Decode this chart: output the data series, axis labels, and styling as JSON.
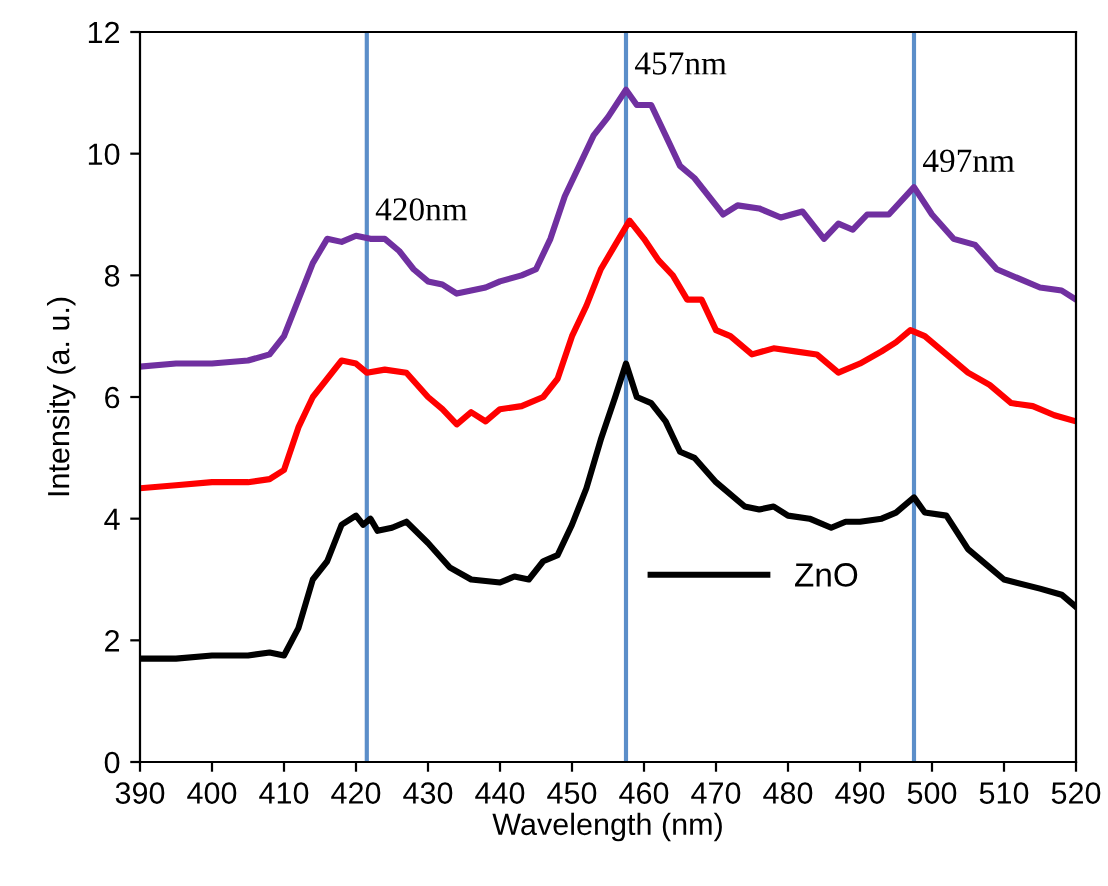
{
  "chart_data": {
    "type": "line",
    "xlabel": "Wavelength (nm)",
    "ylabel": "Intensity (a. u.)",
    "xlim": [
      390,
      520
    ],
    "xticks": [
      390,
      400,
      410,
      420,
      430,
      440,
      450,
      460,
      470,
      480,
      490,
      500,
      510,
      520
    ],
    "ylim": [
      0,
      12
    ],
    "yticks": [
      0,
      2,
      4,
      6,
      8,
      10,
      12
    ],
    "grid": false,
    "legend": "bottom right",
    "series": [
      {
        "name": "ZnO",
        "color": "#000000",
        "x": [
          390,
          395,
          400,
          405,
          408,
          410,
          412,
          414,
          416,
          418,
          420,
          421,
          422,
          423,
          425,
          427,
          430,
          433,
          436,
          440,
          442,
          444,
          446,
          448,
          450,
          452,
          454,
          456,
          457.5,
          459,
          461,
          463,
          465,
          467,
          470,
          474,
          476,
          478,
          480,
          483,
          486,
          488,
          490,
          493,
          495,
          497.5,
          499,
          502,
          505,
          508,
          510,
          515,
          518,
          520
        ],
        "values": [
          1.7,
          1.7,
          1.75,
          1.75,
          1.8,
          1.75,
          2.2,
          3.0,
          3.3,
          3.9,
          4.05,
          3.9,
          4.0,
          3.8,
          3.85,
          3.95,
          3.6,
          3.2,
          3.0,
          2.95,
          3.05,
          3.0,
          3.3,
          3.4,
          3.9,
          4.5,
          5.3,
          6.0,
          6.55,
          6.0,
          5.9,
          5.6,
          5.1,
          5.0,
          4.6,
          4.2,
          4.15,
          4.2,
          4.05,
          4.0,
          3.85,
          3.95,
          3.95,
          4.0,
          4.1,
          4.35,
          4.1,
          4.05,
          3.5,
          3.2,
          3.0,
          2.85,
          2.75,
          2.55
        ]
      },
      {
        "color": "#ff0000",
        "x": [
          390,
          395,
          400,
          405,
          408,
          410,
          412,
          414,
          416,
          418,
          420,
          421.5,
          424,
          427,
          430,
          432,
          434,
          436,
          438,
          440,
          443,
          446,
          448,
          450,
          452,
          454,
          456,
          458,
          460,
          462,
          464,
          466,
          468,
          470,
          472,
          475,
          478,
          481,
          484,
          487,
          490,
          493,
          495,
          497,
          499,
          502,
          505,
          508,
          511,
          514,
          517,
          520
        ],
        "values": [
          4.5,
          4.55,
          4.6,
          4.6,
          4.65,
          4.8,
          5.5,
          6.0,
          6.3,
          6.6,
          6.55,
          6.4,
          6.45,
          6.4,
          6.0,
          5.8,
          5.55,
          5.75,
          5.6,
          5.8,
          5.85,
          6.0,
          6.3,
          7.0,
          7.5,
          8.1,
          8.5,
          8.9,
          8.6,
          8.25,
          8.0,
          7.6,
          7.6,
          7.1,
          7.0,
          6.7,
          6.8,
          6.75,
          6.7,
          6.4,
          6.55,
          6.75,
          6.9,
          7.1,
          7.0,
          6.7,
          6.4,
          6.2,
          5.9,
          5.85,
          5.7,
          5.6
        ]
      },
      {
        "color": "#7030a0",
        "x": [
          390,
          395,
          400,
          405,
          408,
          410,
          412,
          414,
          416,
          418,
          420,
          422,
          424,
          426,
          428,
          430,
          432,
          434,
          436,
          438,
          440,
          443,
          445,
          447,
          449,
          451,
          453,
          455,
          457.5,
          459,
          461,
          463,
          465,
          467,
          469,
          471,
          473,
          476,
          479,
          482,
          485,
          487,
          489,
          491,
          494,
          497.5,
          500,
          503,
          506,
          509,
          512,
          515,
          518,
          520
        ],
        "values": [
          6.5,
          6.55,
          6.55,
          6.6,
          6.7,
          7.0,
          7.6,
          8.2,
          8.6,
          8.55,
          8.65,
          8.6,
          8.6,
          8.4,
          8.1,
          7.9,
          7.85,
          7.7,
          7.75,
          7.8,
          7.9,
          8.0,
          8.1,
          8.6,
          9.3,
          9.8,
          10.3,
          10.6,
          11.05,
          10.8,
          10.8,
          10.3,
          9.8,
          9.6,
          9.3,
          9.0,
          9.15,
          9.1,
          8.95,
          9.05,
          8.6,
          8.85,
          8.75,
          9.0,
          9.0,
          9.45,
          9.0,
          8.6,
          8.5,
          8.1,
          7.95,
          7.8,
          7.75,
          7.6
        ]
      }
    ],
    "ref_lines": [
      {
        "axis": "x",
        "value": 421.5,
        "color": "#5b8ec9"
      },
      {
        "axis": "x",
        "value": 457.5,
        "color": "#5b8ec9"
      },
      {
        "axis": "x",
        "value": 497.5,
        "color": "#5b8ec9"
      }
    ],
    "annotations": [
      {
        "text": "420nm",
        "x": 421.5,
        "y": 8.65
      },
      {
        "text": "457nm",
        "x": 457.5,
        "y": 11.05
      },
      {
        "text": "497nm",
        "x": 497.5,
        "y": 9.45
      }
    ]
  }
}
